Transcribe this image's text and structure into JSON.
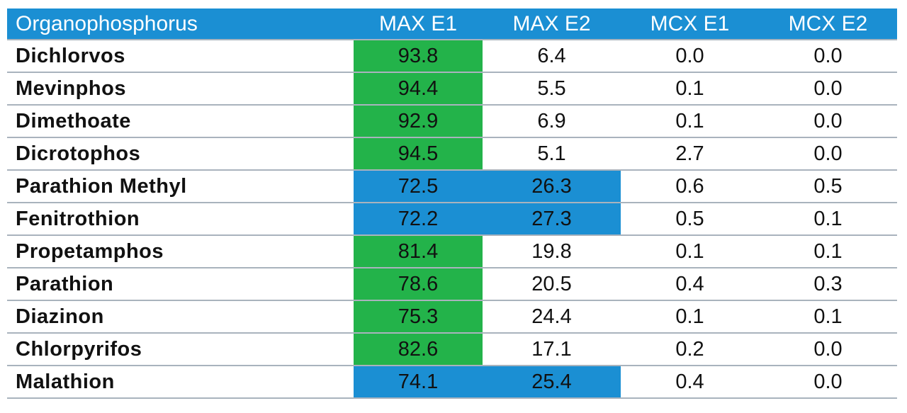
{
  "colors": {
    "header_bg": "#1b8fd3",
    "header_text": "#ffffff",
    "green_highlight": "#23b34a",
    "blue_highlight": "#1b8fd3",
    "row_border": "#a9b3bd"
  },
  "chart_data": {
    "type": "table",
    "columns": [
      "Organophosphorus",
      "MAX E1",
      "MAX E2",
      "MCX E1",
      "MCX E2"
    ],
    "rows": [
      {
        "name": "Dichlorvos",
        "values": [
          "93.8",
          "6.4",
          "0.0",
          "0.0"
        ],
        "highlight": "green"
      },
      {
        "name": "Mevinphos",
        "values": [
          "94.4",
          "5.5",
          "0.1",
          "0.0"
        ],
        "highlight": "green"
      },
      {
        "name": "Dimethoate",
        "values": [
          "92.9",
          "6.9",
          "0.1",
          "0.0"
        ],
        "highlight": "green"
      },
      {
        "name": "Dicrotophos",
        "values": [
          "94.5",
          "5.1",
          "2.7",
          "0.0"
        ],
        "highlight": "green"
      },
      {
        "name": "Parathion Methyl",
        "values": [
          "72.5",
          "26.3",
          "0.6",
          "0.5"
        ],
        "highlight": "blue"
      },
      {
        "name": "Fenitrothion",
        "values": [
          "72.2",
          "27.3",
          "0.5",
          "0.1"
        ],
        "highlight": "blue"
      },
      {
        "name": "Propetamphos",
        "values": [
          "81.4",
          "19.8",
          "0.1",
          "0.1"
        ],
        "highlight": "green"
      },
      {
        "name": "Parathion",
        "values": [
          "78.6",
          "20.5",
          "0.4",
          "0.3"
        ],
        "highlight": "green"
      },
      {
        "name": "Diazinon",
        "values": [
          "75.3",
          "24.4",
          "0.1",
          "0.1"
        ],
        "highlight": "green"
      },
      {
        "name": "Chlorpyrifos",
        "values": [
          "82.6",
          "17.1",
          "0.2",
          "0.0"
        ],
        "highlight": "green"
      },
      {
        "name": "Malathion",
        "values": [
          "74.1",
          "25.4",
          "0.4",
          "0.0"
        ],
        "highlight": "blue"
      }
    ]
  }
}
